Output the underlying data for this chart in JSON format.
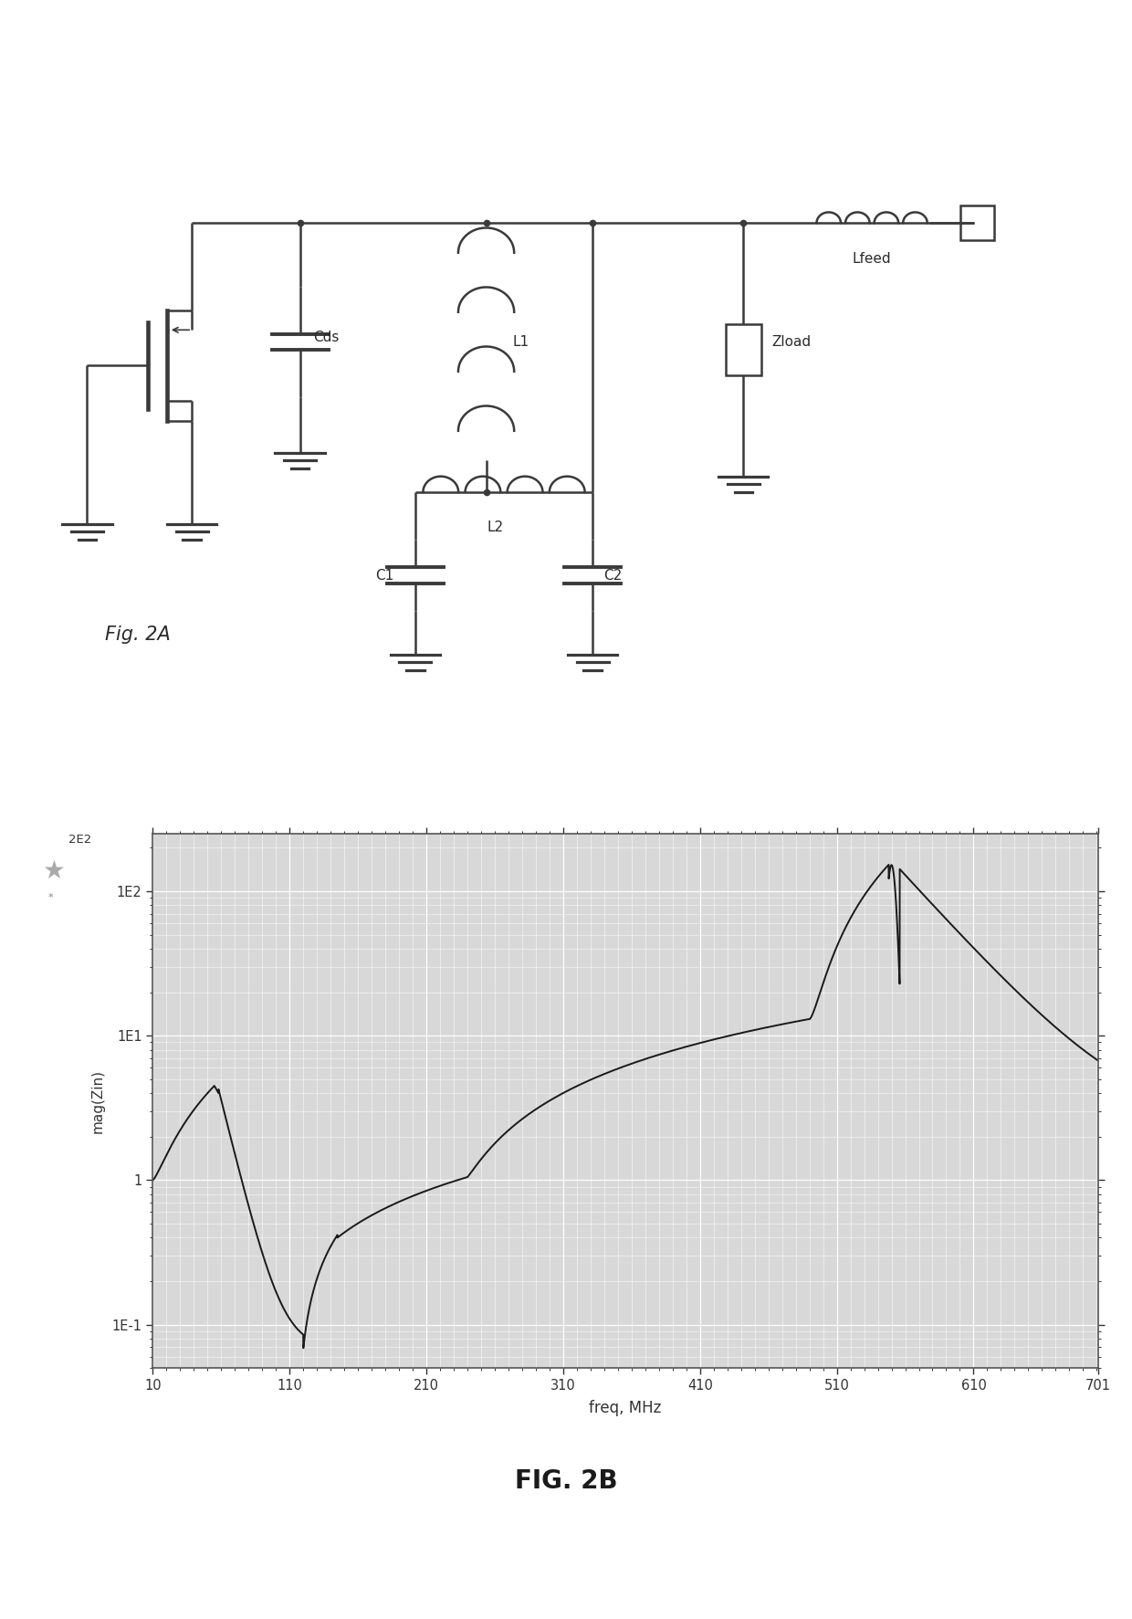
{
  "fig2a_label": "Fig. 2A",
  "fig2b_label": "FIG. 2B",
  "xlabel": "freq, MHz",
  "ylabel": "mag(Zin)",
  "xticks": [
    10,
    110,
    210,
    310,
    410,
    510,
    610,
    701
  ],
  "ytick_vals": [
    0.1,
    1.0,
    10.0,
    100.0
  ],
  "ytick_labels": [
    "1E-1",
    "1",
    "1E1",
    "1E2"
  ],
  "xmin": 10,
  "xmax": 701,
  "ymin": 0.05,
  "ymax": 250,
  "background_color": "#ffffff",
  "plot_bg_color": "#d8d8d8",
  "grid_color": "#ffffff",
  "line_color": "#1a1a1a",
  "circuit_line_color": "#3a3a3a",
  "circuit_lw": 1.8
}
